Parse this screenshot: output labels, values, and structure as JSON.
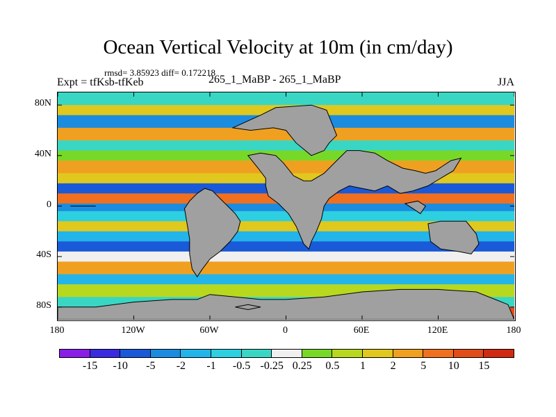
{
  "chart_data": {
    "type": "heatmap",
    "title": "Ocean Vertical Velocity at 10m (in cm/day)",
    "stats_text": "rmsd= 3.85923  diff= 0.172218",
    "experiment_text": "Expt = tfKsb-tfKeb",
    "case_text": "265_1_MaBP - 265_1_MaBP",
    "season": "JJA",
    "x_ticks": [
      "180",
      "120W",
      "60W",
      "0",
      "60E",
      "120E",
      "180"
    ],
    "x_tick_values": [
      -180,
      -120,
      -60,
      0,
      60,
      120,
      180
    ],
    "y_ticks": [
      "80N",
      "40N",
      "0",
      "40S",
      "80S"
    ],
    "y_tick_values": [
      80,
      40,
      0,
      -40,
      -80
    ],
    "xlim": [
      -180,
      180
    ],
    "ylim": [
      -90,
      90
    ],
    "colorbar_labels": [
      "-15",
      "-10",
      "-5",
      "-2",
      "-1",
      "-0.5",
      "-0.25",
      "0.25",
      "0.5",
      "1",
      "2",
      "5",
      "10",
      "15"
    ],
    "colorbar_colors": [
      "#8a1ee6",
      "#3a2be0",
      "#1a5ad8",
      "#1b8ce0",
      "#23b4ea",
      "#2dcfe0",
      "#3ad6c4",
      "#f0f0f0",
      "#78d828",
      "#b8d820",
      "#e0c81e",
      "#f0a020",
      "#f07020",
      "#e24c18",
      "#d02a10"
    ],
    "land_color": "#a0a0a0",
    "bands": [
      {
        "lat_top": 90,
        "lat_bottom": 80,
        "color": "#3ad6c4"
      },
      {
        "lat_top": 80,
        "lat_bottom": 72,
        "color": "#e0c81e"
      },
      {
        "lat_top": 72,
        "lat_bottom": 62,
        "color": "#1b8ce0"
      },
      {
        "lat_top": 62,
        "lat_bottom": 52,
        "color": "#f0a020"
      },
      {
        "lat_top": 52,
        "lat_bottom": 44,
        "color": "#3ad6c4"
      },
      {
        "lat_top": 44,
        "lat_bottom": 36,
        "color": "#78d828"
      },
      {
        "lat_top": 36,
        "lat_bottom": 26,
        "color": "#f0a020"
      },
      {
        "lat_top": 26,
        "lat_bottom": 18,
        "color": "#e0c81e"
      },
      {
        "lat_top": 18,
        "lat_bottom": 10,
        "color": "#1a5ad8"
      },
      {
        "lat_top": 10,
        "lat_bottom": 2,
        "color": "#f07020"
      },
      {
        "lat_top": 2,
        "lat_bottom": -4,
        "color": "#1b8ce0"
      },
      {
        "lat_top": -4,
        "lat_bottom": -12,
        "color": "#2dcfe0"
      },
      {
        "lat_top": -12,
        "lat_bottom": -20,
        "color": "#e0c81e"
      },
      {
        "lat_top": -20,
        "lat_bottom": -28,
        "color": "#23b4ea"
      },
      {
        "lat_top": -28,
        "lat_bottom": -36,
        "color": "#1a5ad8"
      },
      {
        "lat_top": -36,
        "lat_bottom": -44,
        "color": "#f0f0f0"
      },
      {
        "lat_top": -44,
        "lat_bottom": -54,
        "color": "#f0a020"
      },
      {
        "lat_top": -54,
        "lat_bottom": -62,
        "color": "#23b4ea"
      },
      {
        "lat_top": -62,
        "lat_bottom": -72,
        "color": "#b8d820"
      },
      {
        "lat_top": -72,
        "lat_bottom": -80,
        "color": "#3ad6c4"
      },
      {
        "lat_top": -80,
        "lat_bottom": -90,
        "color": "#e24c18"
      }
    ],
    "land": [
      [
        [
          -42,
          62
        ],
        [
          -20,
          72
        ],
        [
          -8,
          78
        ],
        [
          20,
          80
        ],
        [
          32,
          76
        ],
        [
          36,
          66
        ],
        [
          40,
          56
        ],
        [
          34,
          50
        ],
        [
          30,
          44
        ],
        [
          20,
          40
        ],
        [
          8,
          50
        ],
        [
          0,
          60
        ],
        [
          -10,
          62
        ],
        [
          -28,
          60
        ]
      ],
      [
        [
          -30,
          40
        ],
        [
          -20,
          42
        ],
        [
          -8,
          40
        ],
        [
          -2,
          34
        ],
        [
          6,
          24
        ],
        [
          14,
          20
        ],
        [
          20,
          20
        ],
        [
          30,
          26
        ],
        [
          40,
          36
        ],
        [
          48,
          44
        ],
        [
          58,
          44
        ],
        [
          70,
          42
        ],
        [
          80,
          36
        ],
        [
          92,
          30
        ],
        [
          102,
          28
        ],
        [
          110,
          26
        ],
        [
          118,
          28
        ],
        [
          130,
          36
        ],
        [
          138,
          38
        ],
        [
          132,
          28
        ],
        [
          122,
          22
        ],
        [
          112,
          16
        ],
        [
          100,
          12
        ],
        [
          90,
          10
        ],
        [
          80,
          16
        ],
        [
          70,
          12
        ],
        [
          60,
          14
        ],
        [
          50,
          16
        ],
        [
          42,
          12
        ],
        [
          34,
          6
        ],
        [
          30,
          0
        ],
        [
          28,
          -10
        ],
        [
          24,
          -20
        ],
        [
          20,
          -28
        ],
        [
          18,
          -34
        ],
        [
          14,
          -30
        ],
        [
          8,
          -16
        ],
        [
          2,
          -6
        ],
        [
          -6,
          2
        ],
        [
          -14,
          8
        ],
        [
          -16,
          16
        ],
        [
          -16,
          22
        ],
        [
          -22,
          30
        ]
      ],
      [
        [
          -80,
          -2
        ],
        [
          -76,
          4
        ],
        [
          -70,
          10
        ],
        [
          -64,
          14
        ],
        [
          -58,
          12
        ],
        [
          -52,
          6
        ],
        [
          -46,
          0
        ],
        [
          -40,
          -6
        ],
        [
          -36,
          -12
        ],
        [
          -38,
          -20
        ],
        [
          -44,
          -28
        ],
        [
          -52,
          -36
        ],
        [
          -60,
          -42
        ],
        [
          -66,
          -50
        ],
        [
          -70,
          -56
        ],
        [
          -74,
          -50
        ],
        [
          -76,
          -38
        ],
        [
          -76,
          -26
        ],
        [
          -78,
          -14
        ]
      ],
      [
        [
          -170,
          0
        ],
        [
          -160,
          0
        ],
        [
          -150,
          0
        ]
      ],
      [
        [
          112,
          -14
        ],
        [
          122,
          -12
        ],
        [
          132,
          -12
        ],
        [
          142,
          -12
        ],
        [
          150,
          -22
        ],
        [
          152,
          -30
        ],
        [
          146,
          -38
        ],
        [
          136,
          -36
        ],
        [
          122,
          -34
        ],
        [
          114,
          -28
        ]
      ],
      [
        [
          94,
          2
        ],
        [
          100,
          -2
        ],
        [
          106,
          -6
        ],
        [
          110,
          0
        ],
        [
          104,
          4
        ]
      ],
      [
        [
          -60,
          -70
        ],
        [
          -40,
          -72
        ],
        [
          -20,
          -74
        ],
        [
          0,
          -74
        ],
        [
          30,
          -72
        ],
        [
          60,
          -68
        ],
        [
          90,
          -66
        ],
        [
          120,
          -66
        ],
        [
          150,
          -68
        ],
        [
          165,
          -74
        ],
        [
          175,
          -78
        ],
        [
          180,
          -90
        ],
        [
          -180,
          -90
        ],
        [
          -180,
          -80
        ],
        [
          -150,
          -80
        ],
        [
          -120,
          -76
        ],
        [
          -90,
          -74
        ],
        [
          -70,
          -74
        ]
      ],
      [
        [
          -40,
          -80
        ],
        [
          -30,
          -78
        ],
        [
          -20,
          -80
        ],
        [
          -30,
          -82
        ]
      ]
    ]
  }
}
